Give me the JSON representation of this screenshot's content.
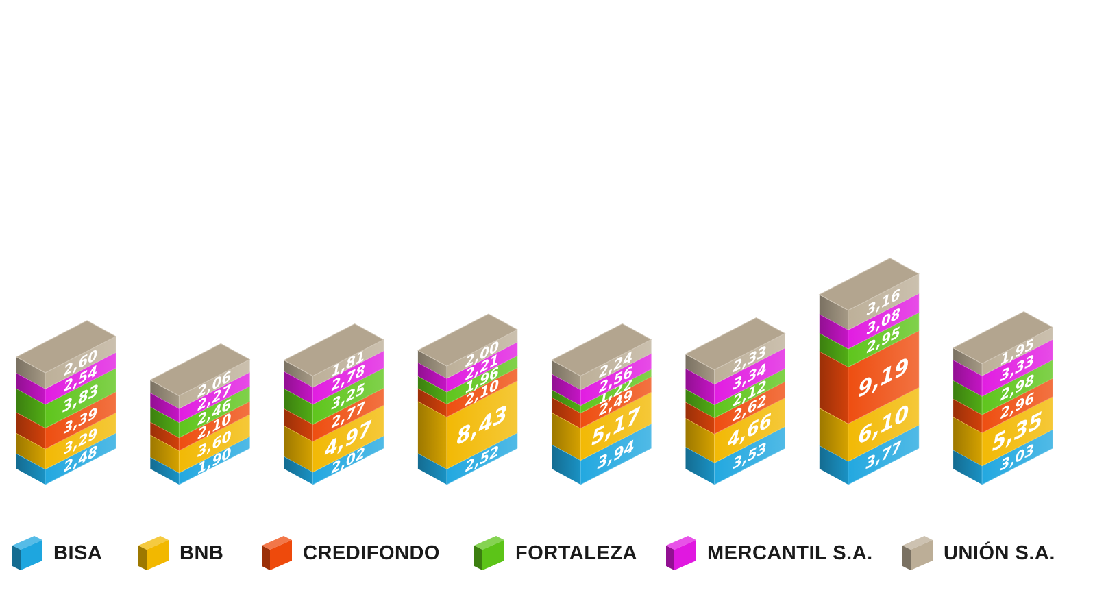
{
  "chart_data": {
    "type": "bar",
    "stacked": true,
    "title": "",
    "xlabel": "",
    "ylabel": "",
    "categories": [
      "",
      "",
      "",
      "",
      "",
      "",
      "",
      ""
    ],
    "series": [
      {
        "name": "BISA",
        "color": "#1ea6df",
        "values": [
          2.48,
          1.9,
          2.02,
          2.52,
          3.94,
          3.53,
          3.77,
          3.03
        ],
        "labels": [
          "2,48",
          "1,90",
          "2,02",
          "2,52",
          "3,94",
          "3,53",
          "3,77",
          "3,03"
        ]
      },
      {
        "name": "BNB",
        "color": "#f2b800",
        "values": [
          3.29,
          3.6,
          4.97,
          8.43,
          5.17,
          4.66,
          6.1,
          5.35
        ],
        "labels": [
          "3,29",
          "3,60",
          "4,97",
          "8,43",
          "5,17",
          "4,66",
          "6,10",
          "5,35"
        ]
      },
      {
        "name": "CREDIFONDO",
        "color": "#ee4a0c",
        "values": [
          3.39,
          2.1,
          2.77,
          2.1,
          2.49,
          2.62,
          9.19,
          2.96
        ],
        "labels": [
          "3,39",
          "2,10",
          "2,77",
          "2,10",
          "2,49",
          "2,62",
          "9,19",
          "2,96"
        ]
      },
      {
        "name": "FORTALEZA",
        "color": "#5cc418",
        "values": [
          3.83,
          2.46,
          3.25,
          1.96,
          1.22,
          2.12,
          2.95,
          2.98
        ],
        "labels": [
          "3,83",
          "2,46",
          "3,25",
          "1,96",
          "1,22",
          "2,12",
          "2,95",
          "2,98"
        ]
      },
      {
        "name": "MERCANTIL S.A.",
        "color": "#e018e0",
        "values": [
          2.54,
          2.27,
          2.78,
          2.21,
          2.56,
          3.34,
          3.08,
          3.33
        ],
        "labels": [
          "2,54",
          "2,27",
          "2,78",
          "2,21",
          "2,56",
          "3,34",
          "3,08",
          "3,33"
        ]
      },
      {
        "name": "UNIÓN S.A.",
        "color": "#bcae97",
        "values": [
          2.6,
          2.06,
          1.81,
          2.0,
          2.24,
          2.33,
          3.16,
          1.95
        ],
        "labels": [
          "2,60",
          "2,06",
          "1,81",
          "2,00",
          "2,24",
          "2,33",
          "3,16",
          "1,95"
        ]
      }
    ],
    "legend_position": "bottom",
    "grid": false
  },
  "legend": [
    {
      "label": "BISA"
    },
    {
      "label": "BNB"
    },
    {
      "label": "CREDIFONDO"
    },
    {
      "label": "FORTALEZA"
    },
    {
      "label": "MERCANTIL S.A."
    },
    {
      "label": "UNIÓN S.A."
    }
  ]
}
